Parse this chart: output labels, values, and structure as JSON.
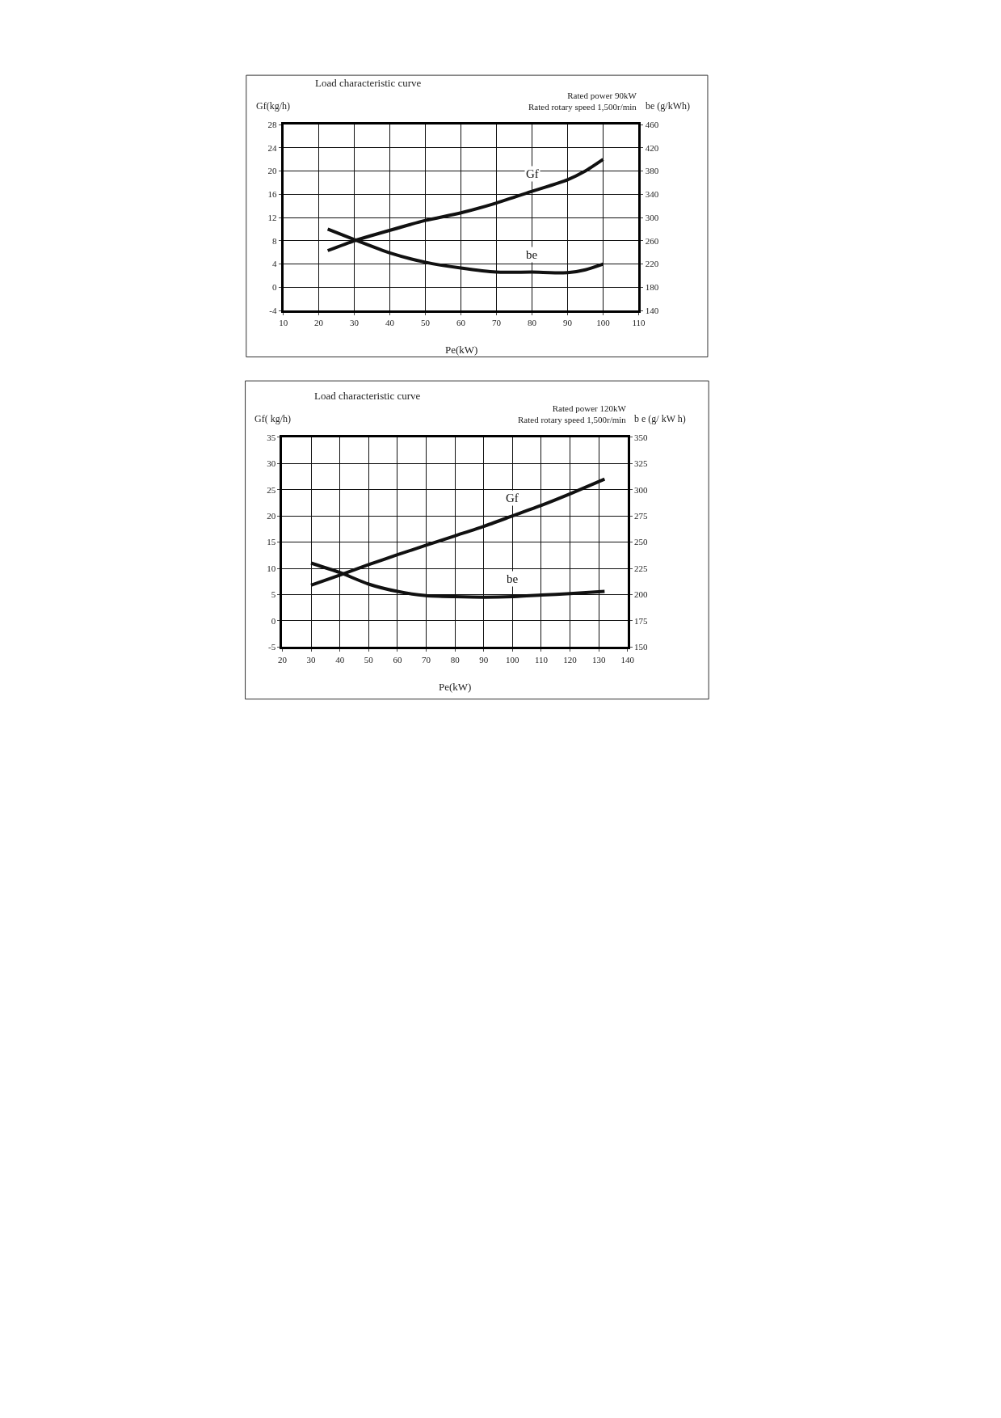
{
  "chart_data": [
    {
      "type": "line",
      "title": "Load characteristic curve",
      "subtitle": "Rated power 90kW\nRated rotary speed 1,500r/min",
      "xlabel": "Pe(kW)",
      "ylabel": "Gf(kg/h)",
      "y2label": "be (g/kWh)",
      "xlim": [
        10,
        110
      ],
      "xticks": [
        10,
        20,
        30,
        40,
        50,
        60,
        70,
        80,
        90,
        100,
        110
      ],
      "ylim": [
        -4,
        28
      ],
      "yticks": [
        -4,
        0,
        4,
        8,
        12,
        16,
        20,
        24,
        28
      ],
      "y2lim": [
        140,
        460
      ],
      "y2ticks": [
        140,
        180,
        220,
        260,
        300,
        340,
        380,
        420,
        460
      ],
      "grid": true,
      "legend": false,
      "line_style": "solid",
      "marker": "none",
      "series": [
        {
          "name": "Gf",
          "color": "#111111",
          "x": [
            22.5,
            30,
            40,
            50,
            60,
            70,
            80,
            90,
            95,
            100
          ],
          "values": [
            6.3,
            8,
            9.8,
            11.5,
            12.8,
            14.5,
            16.5,
            18.5,
            20,
            22
          ]
        },
        {
          "name": "be",
          "color": "#111111",
          "axis": "y2",
          "x": [
            22.5,
            30,
            40,
            50,
            60,
            70,
            80,
            90,
            95,
            100
          ],
          "values": [
            280,
            262,
            239,
            223,
            213,
            206,
            206,
            205,
            210,
            220
          ]
        }
      ]
    },
    {
      "type": "line",
      "title": "Load characteristic curve",
      "subtitle": "Rated power 120kW\nRated rotary speed 1,500r/min",
      "xlabel": "Pe(kW)",
      "ylabel": "Gf( kg/h)",
      "y2label": "b e (g/ kW h)",
      "xlim": [
        20,
        140
      ],
      "xticks": [
        20,
        30,
        40,
        50,
        60,
        70,
        80,
        90,
        100,
        110,
        120,
        130,
        140
      ],
      "ylim": [
        -5,
        35
      ],
      "yticks": [
        -5,
        0,
        5,
        10,
        15,
        20,
        25,
        30,
        35
      ],
      "y2lim": [
        150,
        350
      ],
      "y2ticks": [
        150,
        175,
        200,
        225,
        250,
        275,
        300,
        325,
        350
      ],
      "grid": true,
      "legend": false,
      "line_style": "solid",
      "marker": "none",
      "series": [
        {
          "name": "Gf",
          "color": "#111111",
          "x": [
            30,
            40,
            50,
            60,
            70,
            80,
            90,
            100,
            110,
            120,
            132
          ],
          "values": [
            6.8,
            8.7,
            10.7,
            12.6,
            14.4,
            16.2,
            18,
            20,
            22,
            24.2,
            27
          ]
        },
        {
          "name": "be",
          "color": "#111111",
          "axis": "y2",
          "x": [
            30,
            40,
            50,
            60,
            70,
            80,
            90,
            100,
            110,
            120,
            132
          ],
          "values": [
            230,
            221,
            210,
            203,
            199,
            198,
            197.5,
            198,
            199.5,
            201,
            203
          ]
        }
      ]
    }
  ]
}
